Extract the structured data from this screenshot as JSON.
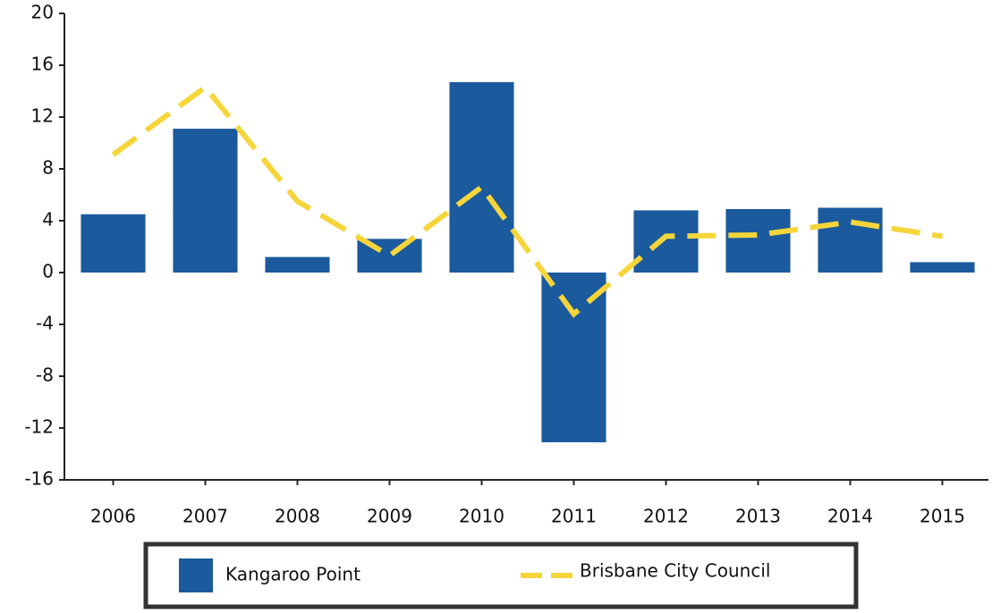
{
  "chart_data": {
    "type": "bar_line",
    "categories": [
      "2006",
      "2007",
      "2008",
      "2009",
      "2010",
      "2011",
      "2012",
      "2013",
      "2014",
      "2015"
    ],
    "series": [
      {
        "name": "Kangaroo Point",
        "type": "bar",
        "color": "#1b5a9c",
        "values": [
          4.5,
          11.1,
          1.2,
          2.6,
          14.7,
          -13.1,
          4.8,
          4.9,
          5.0,
          0.8
        ]
      },
      {
        "name": "Brisbane City Council",
        "type": "line",
        "color": "#f5d53a",
        "values": [
          9.1,
          14.3,
          5.5,
          1.3,
          6.6,
          -3.2,
          2.8,
          2.9,
          3.9,
          2.8
        ]
      }
    ],
    "ylim": [
      -16,
      20
    ],
    "yticks": [
      -16,
      -12,
      -8,
      -4,
      0,
      4,
      8,
      12,
      16,
      20
    ]
  }
}
